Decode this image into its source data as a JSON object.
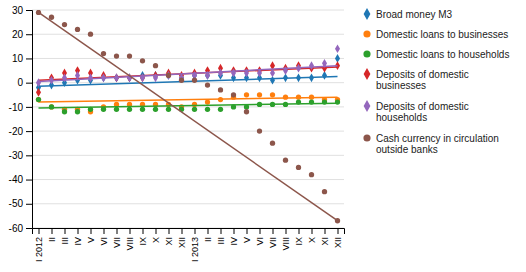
{
  "chart_data": {
    "type": "scatter",
    "categories": [
      "I 2012",
      "II",
      "III",
      "IV",
      "V",
      "VI",
      "VII",
      "VIII",
      "IX",
      "X",
      "XI",
      "XII",
      "I 2013",
      "II",
      "III",
      "IV",
      "V",
      "VI",
      "VII",
      "VIII",
      "IX",
      "X",
      "XI",
      "XII"
    ],
    "ylim": [
      -60,
      30
    ],
    "yticks": [
      -60,
      -50,
      -40,
      -30,
      -20,
      -10,
      0,
      10,
      20,
      30
    ],
    "grid": true,
    "legend": "right",
    "series": [
      {
        "name": "Broad money M3",
        "marker": "diamond",
        "values": [
          -2,
          -1,
          0,
          1,
          1,
          2,
          2,
          2,
          3,
          3,
          3,
          2,
          3,
          3,
          3,
          2,
          2,
          2,
          1,
          2,
          2,
          2,
          3,
          10
        ],
        "trend": [
          -1.5,
          2.5
        ]
      },
      {
        "name": "Domestic loans to businesses",
        "marker": "circle",
        "values": [
          -7,
          -10,
          -11,
          -11,
          -12,
          -10,
          -9,
          -9,
          -9,
          -9,
          -9,
          -10,
          -9,
          -8,
          -7,
          -6,
          -5,
          -5,
          -5,
          -6,
          -6,
          -6,
          -7,
          -7
        ],
        "trend": [
          -8.0,
          -6.0
        ]
      },
      {
        "name": "Domestic loans to households",
        "marker": "circle",
        "values": [
          -7,
          -10,
          -12,
          -12,
          -11,
          -11,
          -11,
          -11,
          -11,
          -11,
          -11,
          -11,
          -11,
          -11,
          -11,
          -10,
          -10,
          -9,
          -9,
          -9,
          -8,
          -8,
          -8,
          -8
        ],
        "trend": [
          -10.5,
          -8.5
        ]
      },
      {
        "name": "Deposits of domestic\nbusinesses",
        "marker": "diamond",
        "values": [
          -4,
          2,
          4,
          5,
          4,
          3,
          2,
          2,
          2,
          3,
          4,
          3,
          4,
          5,
          6,
          5,
          5,
          5,
          7,
          6,
          7,
          6,
          6,
          7
        ],
        "trend": [
          1.0,
          6.5
        ]
      },
      {
        "name": "Deposits of domestic\nhouseholds",
        "marker": "diamond",
        "values": [
          0,
          1,
          2,
          3,
          2,
          2,
          2,
          2,
          2,
          2,
          3,
          2,
          3,
          3,
          4,
          4,
          4,
          4,
          4,
          5,
          6,
          7,
          8,
          14
        ],
        "trend": [
          0.5,
          7.0
        ]
      },
      {
        "name": "Cash currency in circulation\noutside banks",
        "marker": "circle",
        "values": [
          29,
          27,
          24,
          22,
          20,
          12,
          11,
          11,
          9,
          7,
          3,
          1,
          1,
          -1,
          -3,
          -5,
          -12,
          -20,
          -25,
          -32,
          -35,
          -38,
          -45,
          -57
        ],
        "trend": [
          29.0,
          -57.0
        ]
      }
    ]
  }
}
